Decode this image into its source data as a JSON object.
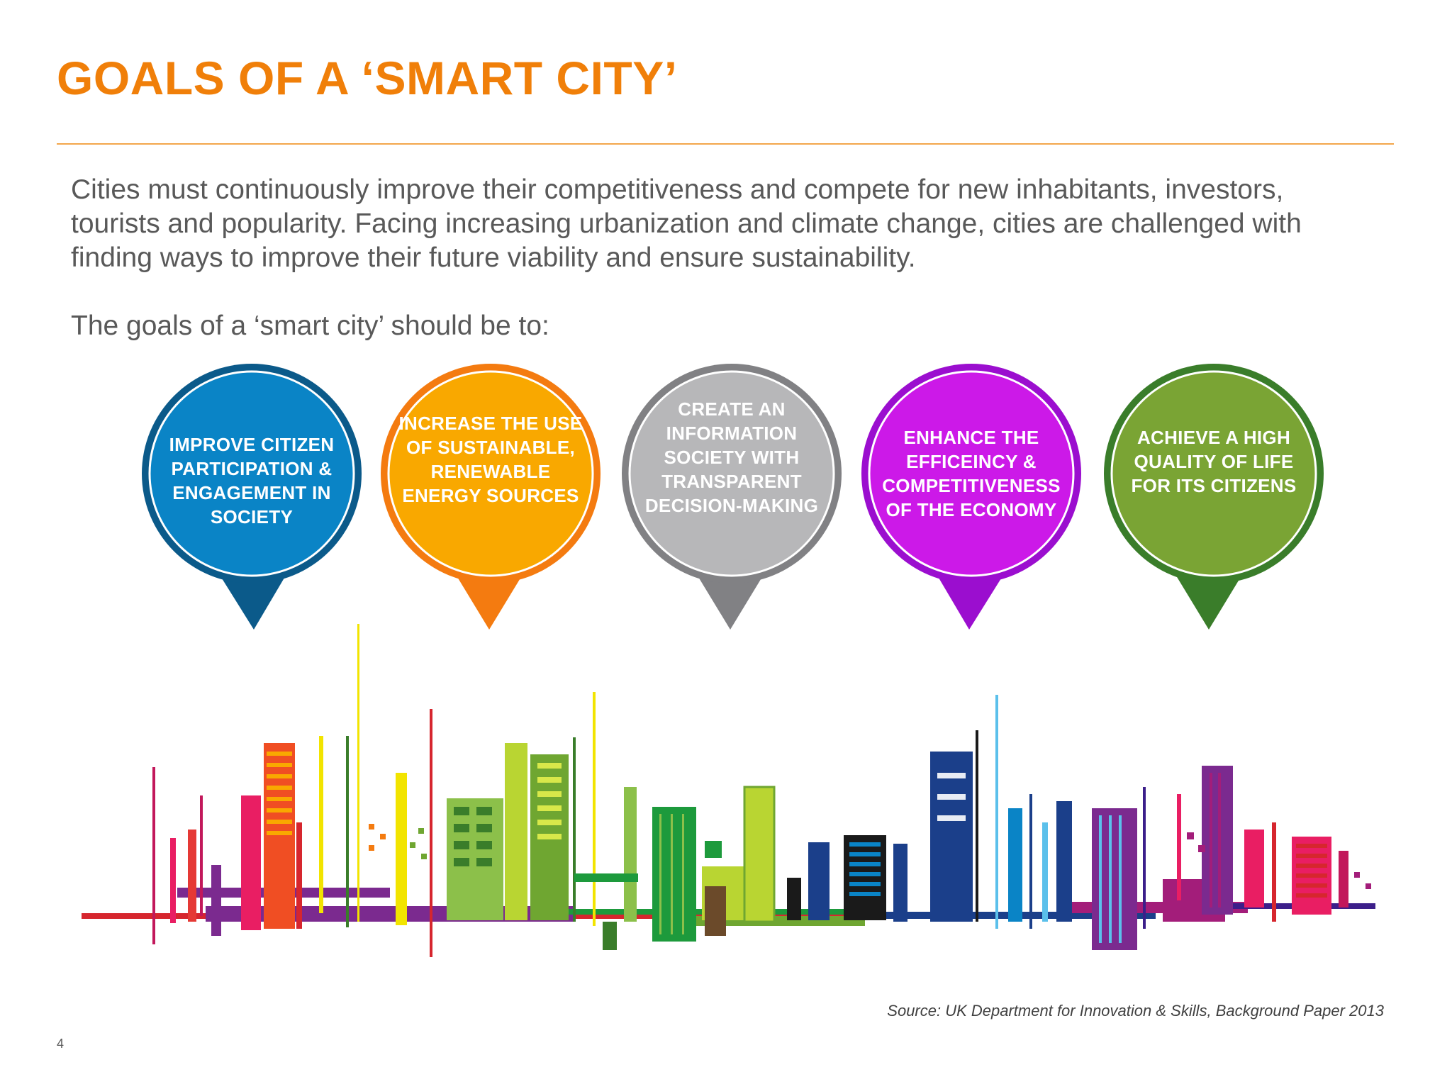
{
  "slide": {
    "title": "GOALS OF A ‘SMART CITY’",
    "paragraph": "Cities must continuously improve their competitiveness and compete for new inhabitants, investors, tourists and popularity. Facing increasing urbanization and climate change, cities are challenged with finding ways to improve their future viability and ensure sustainability.",
    "lead_in": "The goals of a ‘smart city’ should be to:",
    "source": "Source: UK Department for Innovation & Skills, Background Paper 2013",
    "page_number": "4"
  },
  "goals": [
    {
      "label": "IMPROVE CITIZEN PARTICIPATION & ENGAGEMENT IN SOCIETY",
      "color": "#0a84c6",
      "dark": "#0b5a8a"
    },
    {
      "label": "INCREASE THE USE OF SUSTAINABLE, RENEWABLE ENERGY SOURCES",
      "color": "#f9a800",
      "dark": "#f47b10"
    },
    {
      "label": "CREATE AN INFORMATION SOCIETY WITH TRANSPARENT DECISION-MAKING",
      "color": "#b7b7b9",
      "dark": "#818184"
    },
    {
      "label": "ENHANCE THE EFFICEINCY & COMPETITIVENESS OF THE ECONOMY",
      "color": "#cc19e8",
      "dark": "#9b0ecf"
    },
    {
      "label": "ACHIEVE A HIGH QUALITY OF LIFE FOR ITS CITIZENS",
      "color": "#7aa434",
      "dark": "#3a7d2a"
    }
  ],
  "illustration": {
    "name": "colorful-city-skyline"
  }
}
